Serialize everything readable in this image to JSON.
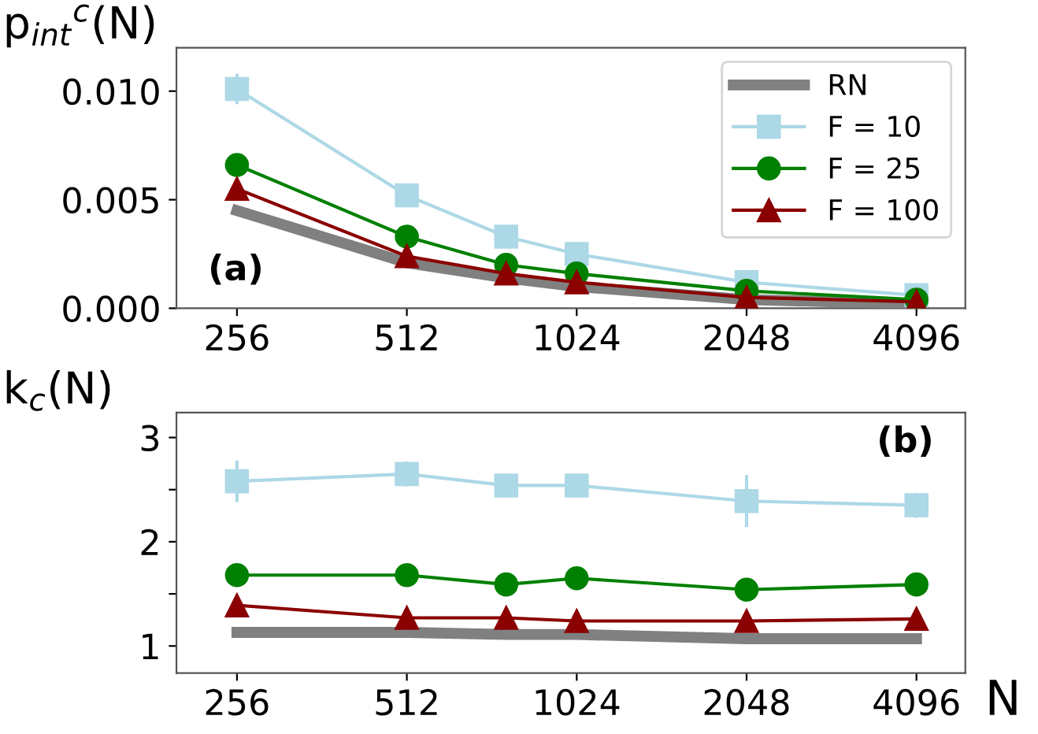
{
  "chart_data": [
    {
      "type": "line",
      "ylabel": "p$_{int}$$^{c}$(N)",
      "annotations": [
        "(a)"
      ],
      "log": "x",
      "xlim": [
        200,
        5000
      ],
      "xticks": [
        256,
        512,
        1024,
        2048,
        4096
      ],
      "ylim": [
        0,
        0.012
      ],
      "yticks": [
        {
          "value": 0,
          "label": "0.000"
        },
        {
          "value": 0.005,
          "label": "0.005"
        },
        {
          "value": 0.01,
          "label": "0.010"
        }
      ],
      "grid": false,
      "legend": "top right",
      "x": [
        256,
        512,
        768,
        1024,
        2048,
        4096
      ],
      "series": [
        {
          "name": "RN",
          "color": "#808080",
          "marker": "none",
          "values": [
            0.0045,
            0.0021,
            0.0014,
            0.001,
            0.0004,
            0.0002
          ]
        },
        {
          "name": "F = 10",
          "color": "#add8e6",
          "marker": "square",
          "values": [
            0.0101,
            0.0052,
            0.0033,
            0.0025,
            0.0012,
            0.0006
          ],
          "errors": [
            0.0007,
            null,
            null,
            null,
            null,
            null
          ]
        },
        {
          "name": "F = 25",
          "color": "#008000",
          "marker": "circle",
          "values": [
            0.0066,
            0.0033,
            0.002,
            0.0016,
            0.0008,
            0.0004
          ]
        },
        {
          "name": "F = 100",
          "color": "#8b0000",
          "marker": "triangle",
          "values": [
            0.0055,
            0.0024,
            0.0016,
            0.0012,
            0.0005,
            0.0003
          ]
        }
      ]
    },
    {
      "type": "line",
      "ylabel": "k$_{c}$(N)",
      "xlabel": "N",
      "annotations": [
        "(b)"
      ],
      "log": "x",
      "xlim": [
        200,
        5000
      ],
      "xticks": [
        256,
        512,
        1024,
        2048,
        4096
      ],
      "ylim": [
        0.74,
        3.24
      ],
      "yticks": [
        1,
        {
          "value": 1.5,
          "label": null
        },
        2,
        {
          "value": 2.5,
          "label": null
        },
        3
      ],
      "grid": false,
      "legend": false,
      "x": [
        256,
        512,
        768,
        1024,
        2048,
        4096
      ],
      "series": [
        {
          "color": "#808080",
          "marker": "none",
          "values": [
            1.13,
            1.13,
            1.11,
            1.11,
            1.07,
            1.07
          ]
        },
        {
          "color": "#add8e6",
          "marker": "square",
          "values": [
            2.58,
            2.65,
            2.54,
            2.54,
            2.39,
            2.35
          ],
          "errors": [
            0.2,
            0.12,
            null,
            0.1,
            0.25,
            0.12
          ]
        },
        {
          "color": "#008000",
          "marker": "circle",
          "values": [
            1.68,
            1.68,
            1.59,
            1.65,
            1.54,
            1.59
          ]
        },
        {
          "color": "#8b0000",
          "marker": "triangle",
          "values": [
            1.39,
            1.27,
            1.27,
            1.24,
            1.24,
            1.26
          ]
        }
      ]
    }
  ]
}
